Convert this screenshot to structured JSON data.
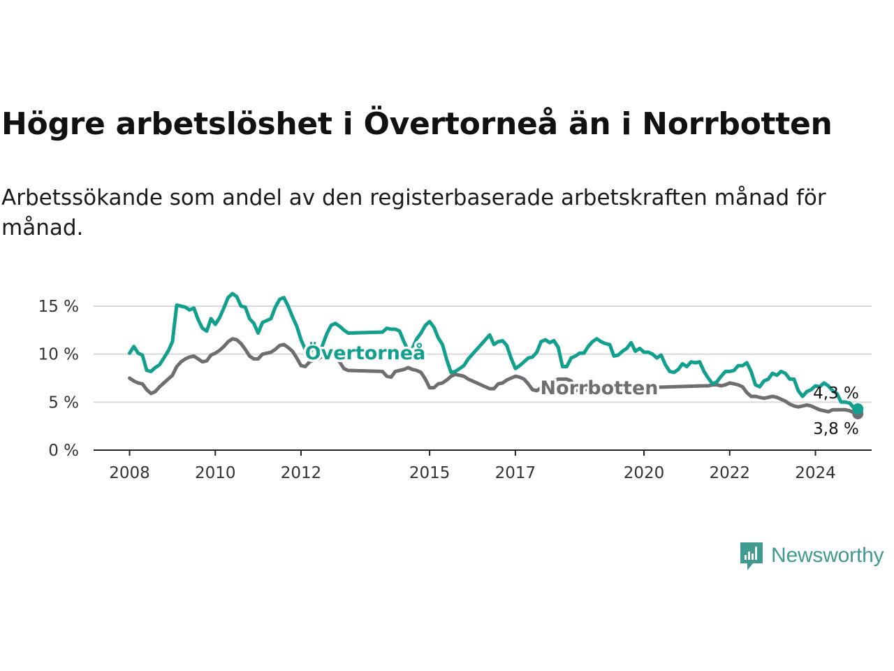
{
  "title": "Högre arbetslöshet i Övertorneå än i Norrbotten",
  "subtitle": "Arbetssökande som andel av den registerbaserade arbetskraften månad för månad.",
  "brand": "Newsworthy",
  "colors": {
    "overtornea": "#12a08e",
    "norrbotten": "#6e6d72",
    "grid": "#d9d9d9",
    "axis": "#222222",
    "brand": "#3f9a8f"
  },
  "chart_data": {
    "type": "line",
    "x_unit": "year",
    "xlim": [
      2007.8,
      2025.3
    ],
    "ylim": [
      0,
      15
    ],
    "yticks": [
      0,
      5,
      10,
      15
    ],
    "ytick_labels": [
      "0 %",
      "5 %",
      "10 %",
      "15 %"
    ],
    "xticks": [
      2008,
      2010,
      2012,
      2015,
      2017,
      2020,
      2022,
      2024
    ],
    "xtick_labels": [
      "2008",
      "2010",
      "2012",
      "2015",
      "2017",
      "2020",
      "2022",
      "2024"
    ],
    "grid": true,
    "series": [
      {
        "name": "Övertorneå",
        "key": "overtornea",
        "last_label": "4,3 %",
        "points": [
          [
            2008.0,
            10.1
          ],
          [
            2008.1,
            10.8
          ],
          [
            2008.2,
            10.1
          ],
          [
            2008.3,
            9.9
          ],
          [
            2008.4,
            8.3
          ],
          [
            2008.5,
            8.2
          ],
          [
            2008.6,
            8.6
          ],
          [
            2008.7,
            8.9
          ],
          [
            2008.8,
            9.6
          ],
          [
            2008.9,
            10.3
          ],
          [
            2009.0,
            11.3
          ],
          [
            2009.1,
            15.1
          ],
          [
            2009.2,
            15.0
          ],
          [
            2009.3,
            14.9
          ],
          [
            2009.4,
            14.6
          ],
          [
            2009.5,
            14.8
          ],
          [
            2009.6,
            13.6
          ],
          [
            2009.7,
            12.7
          ],
          [
            2009.8,
            12.4
          ],
          [
            2009.9,
            13.7
          ],
          [
            2010.0,
            13.1
          ],
          [
            2010.1,
            13.8
          ],
          [
            2010.2,
            14.8
          ],
          [
            2010.3,
            15.9
          ],
          [
            2010.4,
            16.3
          ],
          [
            2010.5,
            16.0
          ],
          [
            2010.6,
            15.0
          ],
          [
            2010.7,
            14.9
          ],
          [
            2010.8,
            13.7
          ],
          [
            2010.9,
            13.2
          ],
          [
            2011.0,
            12.2
          ],
          [
            2011.1,
            13.3
          ],
          [
            2011.2,
            13.5
          ],
          [
            2011.3,
            13.7
          ],
          [
            2011.4,
            14.9
          ],
          [
            2011.5,
            15.7
          ],
          [
            2011.6,
            15.9
          ],
          [
            2011.7,
            15.0
          ],
          [
            2011.8,
            13.9
          ],
          [
            2011.9,
            12.9
          ],
          [
            2012.0,
            11.5
          ],
          [
            2012.1,
            10.5
          ],
          [
            2012.2,
            10.0
          ],
          [
            2012.3,
            10.9
          ],
          [
            2012.4,
            10.2
          ],
          [
            2012.5,
            10.9
          ],
          [
            2012.6,
            12.1
          ],
          [
            2012.7,
            13.0
          ],
          [
            2012.8,
            13.2
          ],
          [
            2012.9,
            12.9
          ],
          [
            2013.0,
            12.5
          ],
          [
            2013.1,
            12.2
          ],
          [
            2013.9,
            12.3
          ],
          [
            2014.0,
            12.7
          ],
          [
            2014.1,
            12.6
          ],
          [
            2014.2,
            12.6
          ],
          [
            2014.3,
            12.4
          ],
          [
            2014.4,
            11.3
          ],
          [
            2014.5,
            10.4
          ],
          [
            2014.6,
            10.6
          ],
          [
            2014.7,
            11.6
          ],
          [
            2014.8,
            12.2
          ],
          [
            2014.9,
            13.0
          ],
          [
            2015.0,
            13.4
          ],
          [
            2015.1,
            12.8
          ],
          [
            2015.2,
            11.7
          ],
          [
            2015.3,
            11.0
          ],
          [
            2015.4,
            9.4
          ],
          [
            2015.5,
            8.1
          ],
          [
            2015.6,
            8.2
          ],
          [
            2015.7,
            8.5
          ],
          [
            2015.8,
            8.8
          ],
          [
            2015.9,
            9.5
          ],
          [
            2016.4,
            12.0
          ],
          [
            2016.5,
            11.0
          ],
          [
            2016.6,
            11.3
          ],
          [
            2016.7,
            11.4
          ],
          [
            2016.8,
            10.9
          ],
          [
            2016.9,
            9.6
          ],
          [
            2017.0,
            8.5
          ],
          [
            2017.1,
            8.8
          ],
          [
            2017.2,
            9.2
          ],
          [
            2017.3,
            9.6
          ],
          [
            2017.4,
            9.7
          ],
          [
            2017.5,
            10.2
          ],
          [
            2017.6,
            11.3
          ],
          [
            2017.7,
            11.5
          ],
          [
            2017.8,
            11.2
          ],
          [
            2017.9,
            11.4
          ],
          [
            2018.0,
            10.7
          ],
          [
            2018.1,
            8.7
          ],
          [
            2018.2,
            8.7
          ],
          [
            2018.3,
            9.6
          ],
          [
            2018.4,
            9.8
          ],
          [
            2018.5,
            10.1
          ],
          [
            2018.6,
            10.1
          ],
          [
            2018.7,
            10.8
          ],
          [
            2018.8,
            11.3
          ],
          [
            2018.9,
            11.6
          ],
          [
            2019.0,
            11.3
          ],
          [
            2019.1,
            11.1
          ],
          [
            2019.2,
            11.0
          ],
          [
            2019.3,
            9.8
          ],
          [
            2019.4,
            9.9
          ],
          [
            2019.5,
            10.3
          ],
          [
            2019.6,
            10.6
          ],
          [
            2019.7,
            11.2
          ],
          [
            2019.8,
            10.3
          ],
          [
            2019.9,
            10.6
          ],
          [
            2020.0,
            10.2
          ],
          [
            2020.1,
            10.2
          ],
          [
            2020.2,
            10.0
          ],
          [
            2020.3,
            9.6
          ],
          [
            2020.4,
            9.9
          ],
          [
            2020.5,
            8.9
          ],
          [
            2020.6,
            8.2
          ],
          [
            2020.7,
            8.1
          ],
          [
            2020.8,
            8.4
          ],
          [
            2020.9,
            9.0
          ],
          [
            2021.0,
            8.7
          ],
          [
            2021.1,
            9.2
          ],
          [
            2021.2,
            9.1
          ],
          [
            2021.3,
            9.2
          ],
          [
            2021.4,
            8.2
          ],
          [
            2021.5,
            7.5
          ],
          [
            2021.6,
            6.9
          ],
          [
            2021.7,
            7.1
          ],
          [
            2021.8,
            7.7
          ],
          [
            2021.9,
            8.2
          ],
          [
            2022.0,
            8.2
          ],
          [
            2022.1,
            8.3
          ],
          [
            2022.2,
            8.8
          ],
          [
            2022.3,
            8.8
          ],
          [
            2022.4,
            9.1
          ],
          [
            2022.5,
            8.2
          ],
          [
            2022.6,
            6.8
          ],
          [
            2022.7,
            6.6
          ],
          [
            2022.8,
            7.2
          ],
          [
            2022.9,
            7.4
          ],
          [
            2023.0,
            8.0
          ],
          [
            2023.1,
            7.8
          ],
          [
            2023.2,
            8.2
          ],
          [
            2023.3,
            8.0
          ],
          [
            2023.4,
            7.4
          ],
          [
            2023.5,
            7.4
          ],
          [
            2023.6,
            6.2
          ],
          [
            2023.7,
            5.6
          ],
          [
            2023.8,
            6.1
          ],
          [
            2023.9,
            6.3
          ],
          [
            2024.0,
            6.7
          ],
          [
            2024.1,
            6.6
          ],
          [
            2024.2,
            7.0
          ],
          [
            2024.3,
            6.7
          ],
          [
            2024.4,
            6.2
          ],
          [
            2024.5,
            5.9
          ],
          [
            2024.6,
            5.0
          ],
          [
            2024.7,
            5.0
          ],
          [
            2024.8,
            4.9
          ],
          [
            2024.9,
            4.4
          ],
          [
            2024.99,
            4.3
          ]
        ]
      },
      {
        "name": "Norrbotten",
        "key": "norrbotten",
        "last_label": "3,8 %",
        "points": [
          [
            2008.0,
            7.5
          ],
          [
            2008.1,
            7.2
          ],
          [
            2008.2,
            7.0
          ],
          [
            2008.3,
            6.9
          ],
          [
            2008.4,
            6.3
          ],
          [
            2008.5,
            5.9
          ],
          [
            2008.6,
            6.1
          ],
          [
            2008.7,
            6.6
          ],
          [
            2008.8,
            7.0
          ],
          [
            2008.9,
            7.4
          ],
          [
            2009.0,
            7.8
          ],
          [
            2009.1,
            8.7
          ],
          [
            2009.2,
            9.2
          ],
          [
            2009.3,
            9.5
          ],
          [
            2009.4,
            9.7
          ],
          [
            2009.5,
            9.8
          ],
          [
            2009.6,
            9.5
          ],
          [
            2009.7,
            9.2
          ],
          [
            2009.8,
            9.3
          ],
          [
            2009.9,
            9.9
          ],
          [
            2010.0,
            10.1
          ],
          [
            2010.1,
            10.4
          ],
          [
            2010.2,
            10.8
          ],
          [
            2010.3,
            11.3
          ],
          [
            2010.4,
            11.6
          ],
          [
            2010.5,
            11.5
          ],
          [
            2010.6,
            11.1
          ],
          [
            2010.7,
            10.5
          ],
          [
            2010.8,
            9.8
          ],
          [
            2010.9,
            9.5
          ],
          [
            2011.0,
            9.5
          ],
          [
            2011.1,
            10.0
          ],
          [
            2011.2,
            10.1
          ],
          [
            2011.3,
            10.2
          ],
          [
            2011.4,
            10.5
          ],
          [
            2011.5,
            10.9
          ],
          [
            2011.6,
            11.0
          ],
          [
            2011.7,
            10.7
          ],
          [
            2011.8,
            10.3
          ],
          [
            2011.9,
            9.6
          ],
          [
            2012.0,
            8.8
          ],
          [
            2012.1,
            8.7
          ],
          [
            2012.2,
            9.2
          ],
          [
            2012.3,
            9.4
          ],
          [
            2012.4,
            9.5
          ],
          [
            2012.5,
            9.8
          ],
          [
            2012.6,
            10.1
          ],
          [
            2012.7,
            10.2
          ],
          [
            2012.8,
            9.7
          ],
          [
            2012.9,
            9.2
          ],
          [
            2013.0,
            8.5
          ],
          [
            2013.1,
            8.3
          ],
          [
            2013.9,
            8.2
          ],
          [
            2014.0,
            7.7
          ],
          [
            2014.1,
            7.6
          ],
          [
            2014.2,
            8.2
          ],
          [
            2014.3,
            8.3
          ],
          [
            2014.4,
            8.4
          ],
          [
            2014.5,
            8.6
          ],
          [
            2014.6,
            8.4
          ],
          [
            2014.7,
            8.3
          ],
          [
            2014.8,
            8.1
          ],
          [
            2014.9,
            7.4
          ],
          [
            2015.0,
            6.5
          ],
          [
            2015.1,
            6.5
          ],
          [
            2015.2,
            6.9
          ],
          [
            2015.3,
            7.0
          ],
          [
            2015.4,
            7.3
          ],
          [
            2015.5,
            7.7
          ],
          [
            2015.6,
            7.9
          ],
          [
            2015.7,
            7.8
          ],
          [
            2015.8,
            7.7
          ],
          [
            2015.9,
            7.4
          ],
          [
            2016.4,
            6.4
          ],
          [
            2016.5,
            6.4
          ],
          [
            2016.6,
            6.9
          ],
          [
            2016.7,
            7.0
          ],
          [
            2016.8,
            7.3
          ],
          [
            2016.9,
            7.5
          ],
          [
            2017.0,
            7.7
          ],
          [
            2017.1,
            7.6
          ],
          [
            2017.2,
            7.4
          ],
          [
            2017.3,
            6.9
          ],
          [
            2017.4,
            6.3
          ],
          [
            2017.5,
            6.2
          ],
          [
            2017.6,
            6.5
          ],
          [
            2017.7,
            6.8
          ],
          [
            2017.8,
            7.0
          ],
          [
            2017.9,
            7.2
          ],
          [
            2018.0,
            7.4
          ],
          [
            2018.1,
            7.4
          ],
          [
            2018.2,
            7.4
          ],
          [
            2018.3,
            7.2
          ],
          [
            2018.4,
            6.2
          ],
          [
            2018.5,
            6.3
          ],
          [
            2021.4,
            6.7
          ],
          [
            2021.5,
            6.7
          ],
          [
            2021.6,
            6.8
          ],
          [
            2021.7,
            6.8
          ],
          [
            2021.8,
            6.7
          ],
          [
            2021.9,
            6.8
          ],
          [
            2022.0,
            7.0
          ],
          [
            2022.1,
            6.9
          ],
          [
            2022.2,
            6.8
          ],
          [
            2022.3,
            6.6
          ],
          [
            2022.4,
            6.0
          ],
          [
            2022.5,
            5.6
          ],
          [
            2022.6,
            5.6
          ],
          [
            2022.7,
            5.5
          ],
          [
            2022.8,
            5.4
          ],
          [
            2022.9,
            5.5
          ],
          [
            2023.0,
            5.6
          ],
          [
            2023.1,
            5.5
          ],
          [
            2023.2,
            5.3
          ],
          [
            2023.3,
            5.1
          ],
          [
            2023.4,
            4.8
          ],
          [
            2023.5,
            4.6
          ],
          [
            2023.6,
            4.5
          ],
          [
            2023.7,
            4.6
          ],
          [
            2023.8,
            4.7
          ],
          [
            2023.9,
            4.6
          ],
          [
            2024.0,
            4.4
          ],
          [
            2024.1,
            4.2
          ],
          [
            2024.2,
            4.1
          ],
          [
            2024.3,
            4.0
          ],
          [
            2024.4,
            4.2
          ],
          [
            2024.5,
            4.2
          ],
          [
            2024.6,
            4.2
          ],
          [
            2024.7,
            4.2
          ],
          [
            2024.8,
            4.1
          ],
          [
            2024.9,
            3.9
          ],
          [
            2024.99,
            3.8
          ]
        ]
      }
    ]
  }
}
